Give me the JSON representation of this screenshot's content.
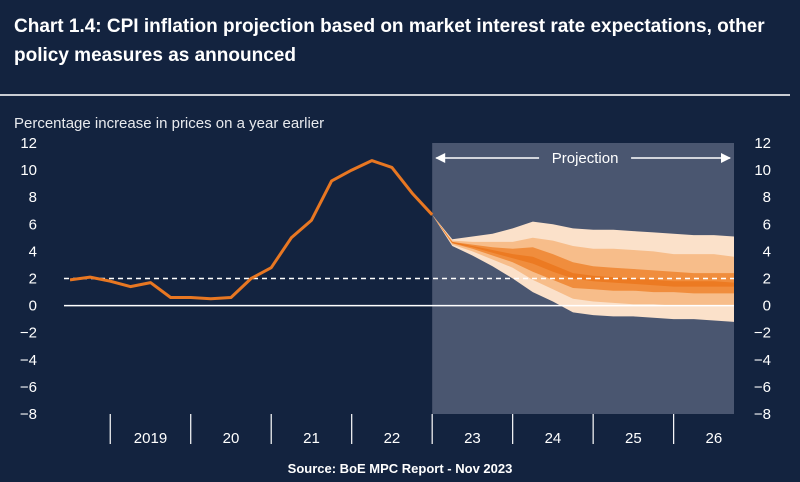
{
  "title": "Chart 1.4: CPI inflation projection based on market interest rate expectations, other policy measures as announced",
  "source": "Source: BoE MPC Report - Nov 2023",
  "chart_data": {
    "type": "line",
    "title": "Chart 1.4: CPI inflation projection based on market interest rate expectations, other policy measures as announced",
    "ylabel": "Percentage increase in prices on a year earlier",
    "xlabel": "",
    "ylim": [
      -8,
      12
    ],
    "yticks": [
      -8,
      -6,
      -4,
      -2,
      0,
      2,
      4,
      6,
      8,
      10,
      12
    ],
    "xlim": [
      2018.5,
      2026.75
    ],
    "x_tick_labels": [
      "2019",
      "20",
      "21",
      "22",
      "23",
      "24",
      "25",
      "26"
    ],
    "projection_label": "Projection",
    "projection_start": 2023.0,
    "target_line": 2,
    "colors": {
      "background": "#13233f",
      "projection_shade": "#4a5670",
      "line": "#e87722",
      "fan_outer": "#fbe1ca",
      "fan_mid": "#f7bd8a",
      "fan_inner": "#f08d3d",
      "fan_center": "#ec7a22",
      "axis_text": "#ffffff"
    },
    "series": [
      {
        "name": "CPI inflation",
        "x": [
          2018.5,
          2018.75,
          2019.0,
          2019.25,
          2019.5,
          2019.75,
          2020.0,
          2020.25,
          2020.5,
          2020.75,
          2021.0,
          2021.25,
          2021.5,
          2021.75,
          2022.0,
          2022.25,
          2022.5,
          2022.75,
          2023.0
        ],
        "values": [
          1.9,
          2.1,
          1.8,
          1.4,
          1.7,
          0.6,
          0.6,
          0.5,
          0.6,
          2.0,
          2.8,
          5.0,
          6.3,
          9.2,
          10.0,
          10.7,
          10.2,
          8.3,
          6.7
        ]
      }
    ],
    "fan": {
      "x": [
        2023.0,
        2023.25,
        2023.5,
        2023.75,
        2024.0,
        2024.25,
        2024.5,
        2024.75,
        2025.0,
        2025.25,
        2025.5,
        2025.75,
        2026.0,
        2026.25,
        2026.5,
        2026.75
      ],
      "bands": [
        {
          "name": "outer",
          "upper": [
            6.7,
            4.9,
            5.1,
            5.3,
            5.7,
            6.2,
            6.0,
            5.7,
            5.6,
            5.6,
            5.5,
            5.4,
            5.3,
            5.2,
            5.2,
            5.1
          ],
          "lower": [
            6.7,
            4.4,
            3.7,
            2.9,
            2.0,
            1.0,
            0.3,
            -0.5,
            -0.7,
            -0.8,
            -0.8,
            -0.9,
            -1.0,
            -1.0,
            -1.1,
            -1.2
          ]
        },
        {
          "name": "middle",
          "upper": [
            6.7,
            4.8,
            4.7,
            4.7,
            4.7,
            5.0,
            4.8,
            4.4,
            4.2,
            4.2,
            4.1,
            4.0,
            3.8,
            3.8,
            3.8,
            3.6
          ],
          "lower": [
            6.7,
            4.5,
            4.0,
            3.4,
            2.8,
            1.9,
            1.2,
            0.5,
            0.3,
            0.2,
            0.1,
            0.1,
            0.0,
            0.0,
            0.0,
            0.0
          ]
        },
        {
          "name": "inner",
          "upper": [
            6.7,
            4.7,
            4.5,
            4.3,
            4.2,
            4.3,
            3.8,
            3.2,
            2.9,
            2.8,
            2.7,
            2.6,
            2.5,
            2.4,
            2.4,
            2.4
          ],
          "lower": [
            6.7,
            4.6,
            4.2,
            3.7,
            3.2,
            2.5,
            1.9,
            1.3,
            1.2,
            1.1,
            1.1,
            1.0,
            1.0,
            0.9,
            0.9,
            0.9
          ]
        },
        {
          "name": "center",
          "upper": [
            6.7,
            4.7,
            4.4,
            4.1,
            3.8,
            3.6,
            3.0,
            2.4,
            2.2,
            2.1,
            2.0,
            1.9,
            1.8,
            1.8,
            1.8,
            1.7
          ],
          "lower": [
            6.7,
            4.6,
            4.3,
            3.9,
            3.5,
            3.1,
            2.5,
            2.0,
            1.8,
            1.7,
            1.6,
            1.5,
            1.4,
            1.4,
            1.4,
            1.4
          ]
        }
      ]
    }
  }
}
